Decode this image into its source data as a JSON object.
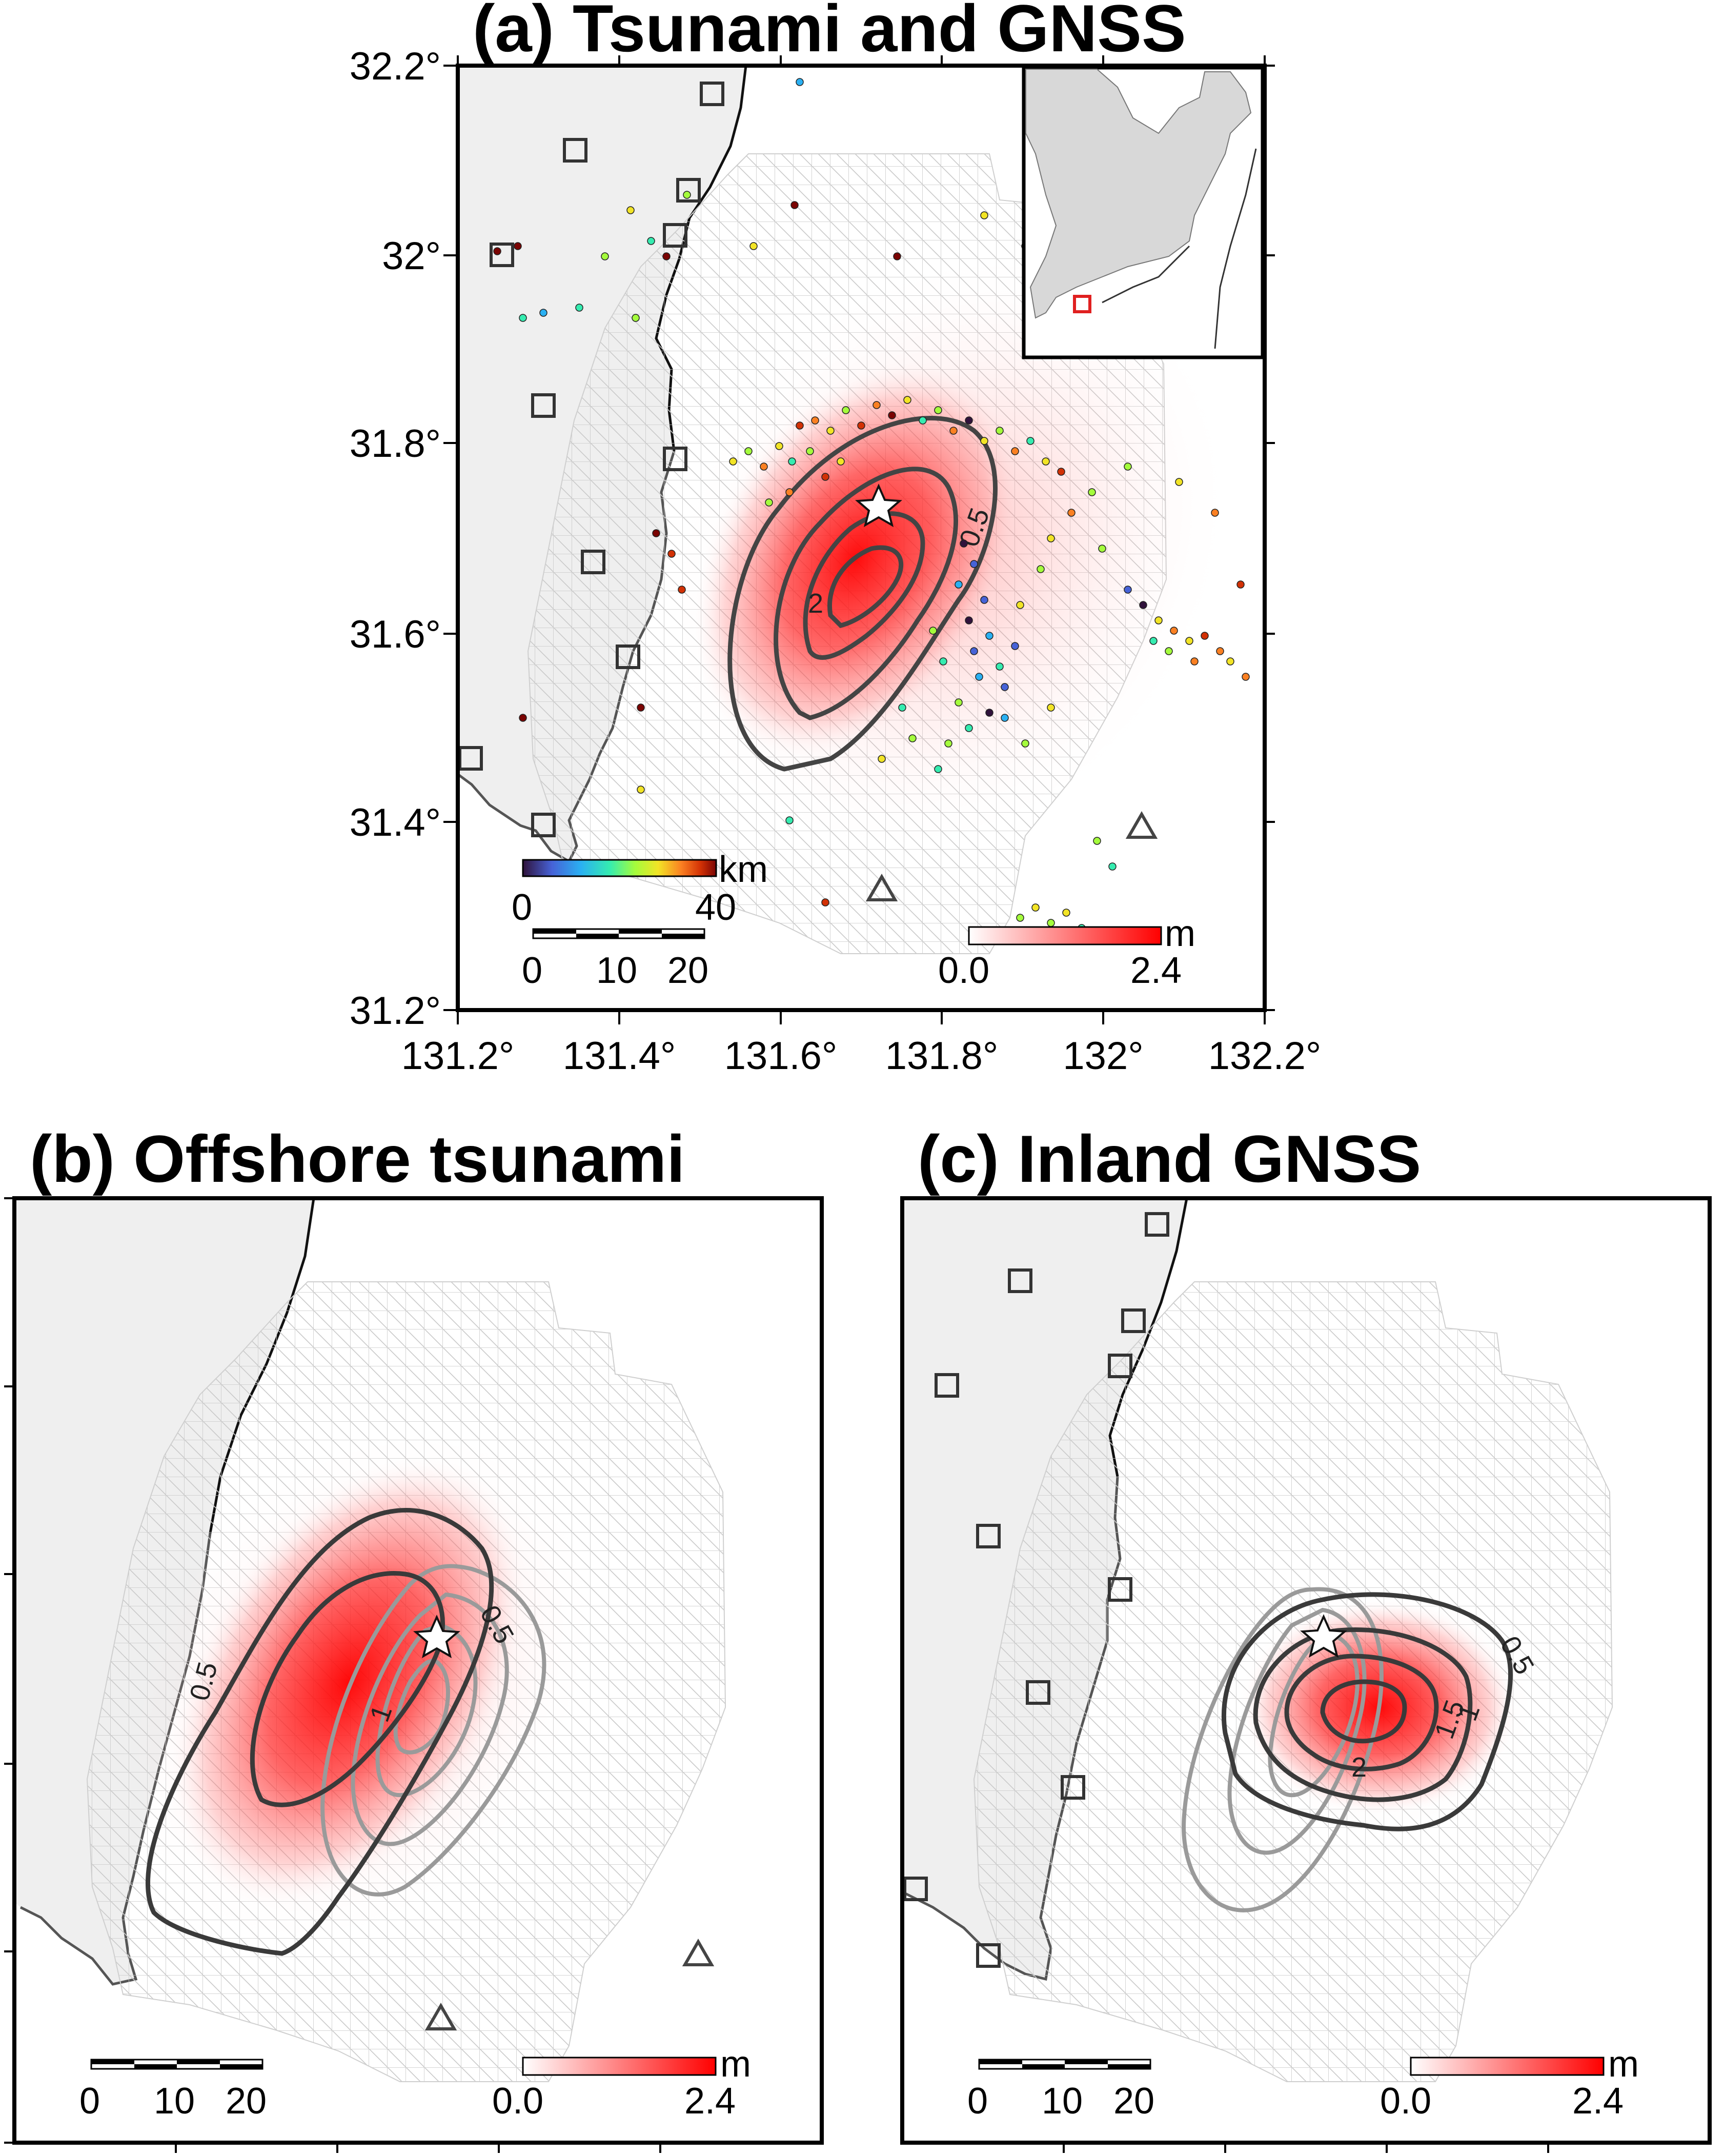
{
  "panel_a": {
    "title": "(a) Tsunami and GNSS",
    "lat_ticks": [
      "32.2°",
      "32°",
      "31.8°",
      "31.6°",
      "31.4°",
      "31.2°"
    ],
    "lon_ticks": [
      "131.2°",
      "131.4°",
      "131.6°",
      "131.8°",
      "132°",
      "132.2°"
    ],
    "depth_bar": {
      "unit": "km",
      "min": "0",
      "max": "40"
    },
    "scale_bar": [
      "0",
      "10",
      "20"
    ],
    "slip_bar": {
      "unit": "m",
      "min": "0.0",
      "max": "2.4"
    },
    "contour_labels": [
      "2",
      "0.5"
    ]
  },
  "panel_b": {
    "title": "(b) Offshore tsunami",
    "scale_bar": [
      "0",
      "10",
      "20"
    ],
    "slip_bar": {
      "unit": "m",
      "min": "0.0",
      "max": "2.4"
    },
    "contour_labels": [
      "0.5",
      "0.5",
      "1"
    ]
  },
  "panel_c": {
    "title": "(c) Inland GNSS",
    "scale_bar": [
      "0",
      "10",
      "20"
    ],
    "slip_bar": {
      "unit": "m",
      "min": "0.0",
      "max": "2.4"
    },
    "contour_labels": [
      "0.5",
      "1.5",
      "1",
      "2"
    ]
  },
  "colors": {
    "land": "#efefef",
    "slip": "#ff0000",
    "inset_box": "#e02020",
    "contour_dark": "#3a3a3a",
    "contour_light": "#9a9a9a"
  },
  "symbols": {
    "gnss_station": "square",
    "tsunami_station": "triangle",
    "epicenter": "star"
  }
}
